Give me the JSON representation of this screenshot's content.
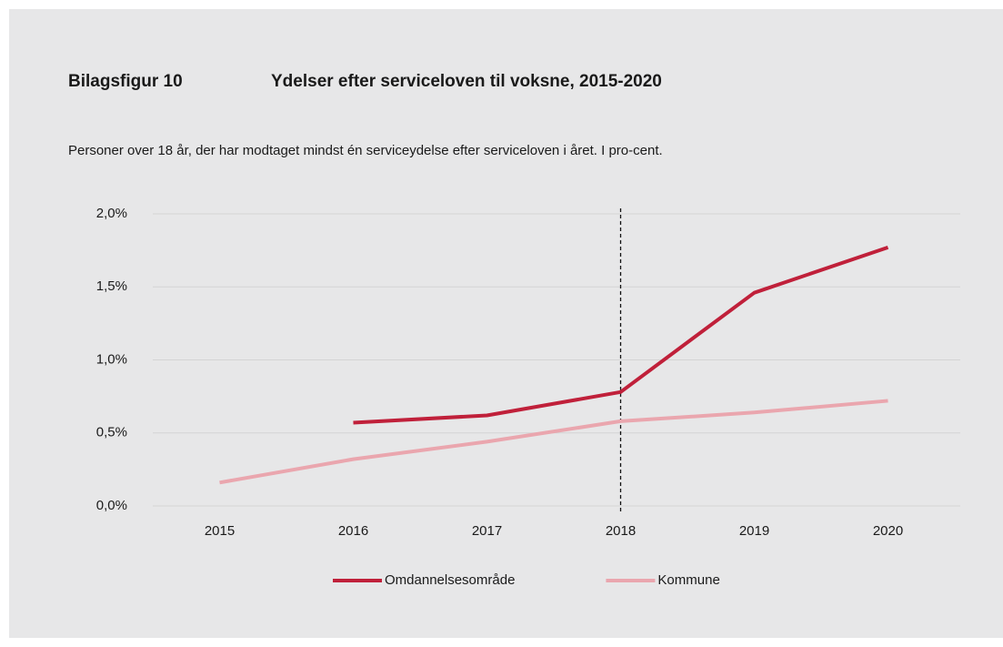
{
  "chart_data": {
    "type": "line",
    "figure_label": "Bilagsfigur 10",
    "title": "Ydelser efter serviceloven til voksne, 2015-2020",
    "subtitle": "Personer over 18 år, der har modtaget mindst én serviceydelse efter serviceloven i året. I pro-cent.",
    "categories": [
      "2015",
      "2016",
      "2017",
      "2018",
      "2019",
      "2020"
    ],
    "series": [
      {
        "name": "Omdannelsesområde",
        "color": "#c0203a",
        "values": [
          null,
          0.57,
          0.62,
          0.78,
          1.46,
          1.77
        ]
      },
      {
        "name": "Kommune",
        "color": "#eaa6ae",
        "values": [
          0.16,
          0.32,
          0.44,
          0.58,
          0.64,
          0.72
        ]
      }
    ],
    "ylim": [
      0,
      2.0
    ],
    "yticks": [
      {
        "value": 0,
        "label": "0,0%"
      },
      {
        "value": 0.5,
        "label": "0,5%"
      },
      {
        "value": 1.0,
        "label": "1,0%"
      },
      {
        "value": 1.5,
        "label": "1,5%"
      },
      {
        "value": 2.0,
        "label": "2,0%"
      }
    ],
    "grid": true,
    "vline_category": "2018",
    "legend": "bottom"
  }
}
